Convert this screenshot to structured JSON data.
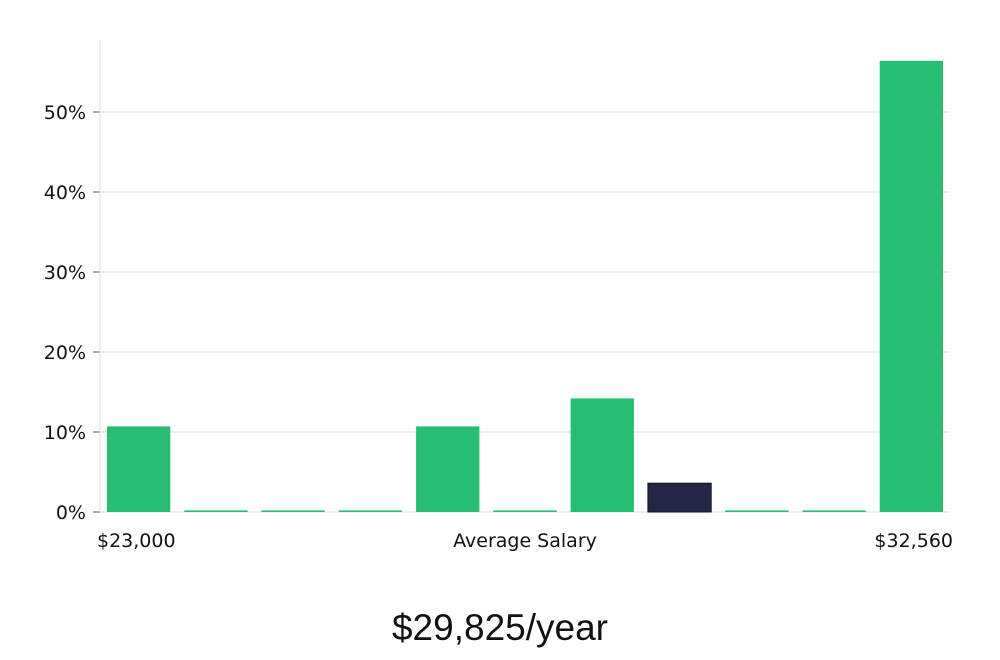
{
  "chart_data": {
    "type": "bar",
    "values": [
      10.7,
      0.2,
      0.2,
      0.2,
      10.7,
      0.2,
      14.2,
      3.6,
      0.2,
      0.2,
      56.4
    ],
    "highlight_index": 7,
    "ylim": [
      0,
      59
    ],
    "yticks": [
      0,
      10,
      20,
      30,
      40,
      50
    ],
    "ytick_suffix": "%",
    "x_min_label": "$23,000",
    "x_label": "Average Salary",
    "x_max_label": "$32,560",
    "grid": true,
    "colors": {
      "bar": "#27bd73",
      "highlight": "#252546",
      "grid": "#dddddd",
      "axis": "#dddddd"
    }
  },
  "headline": "$29,825/year"
}
